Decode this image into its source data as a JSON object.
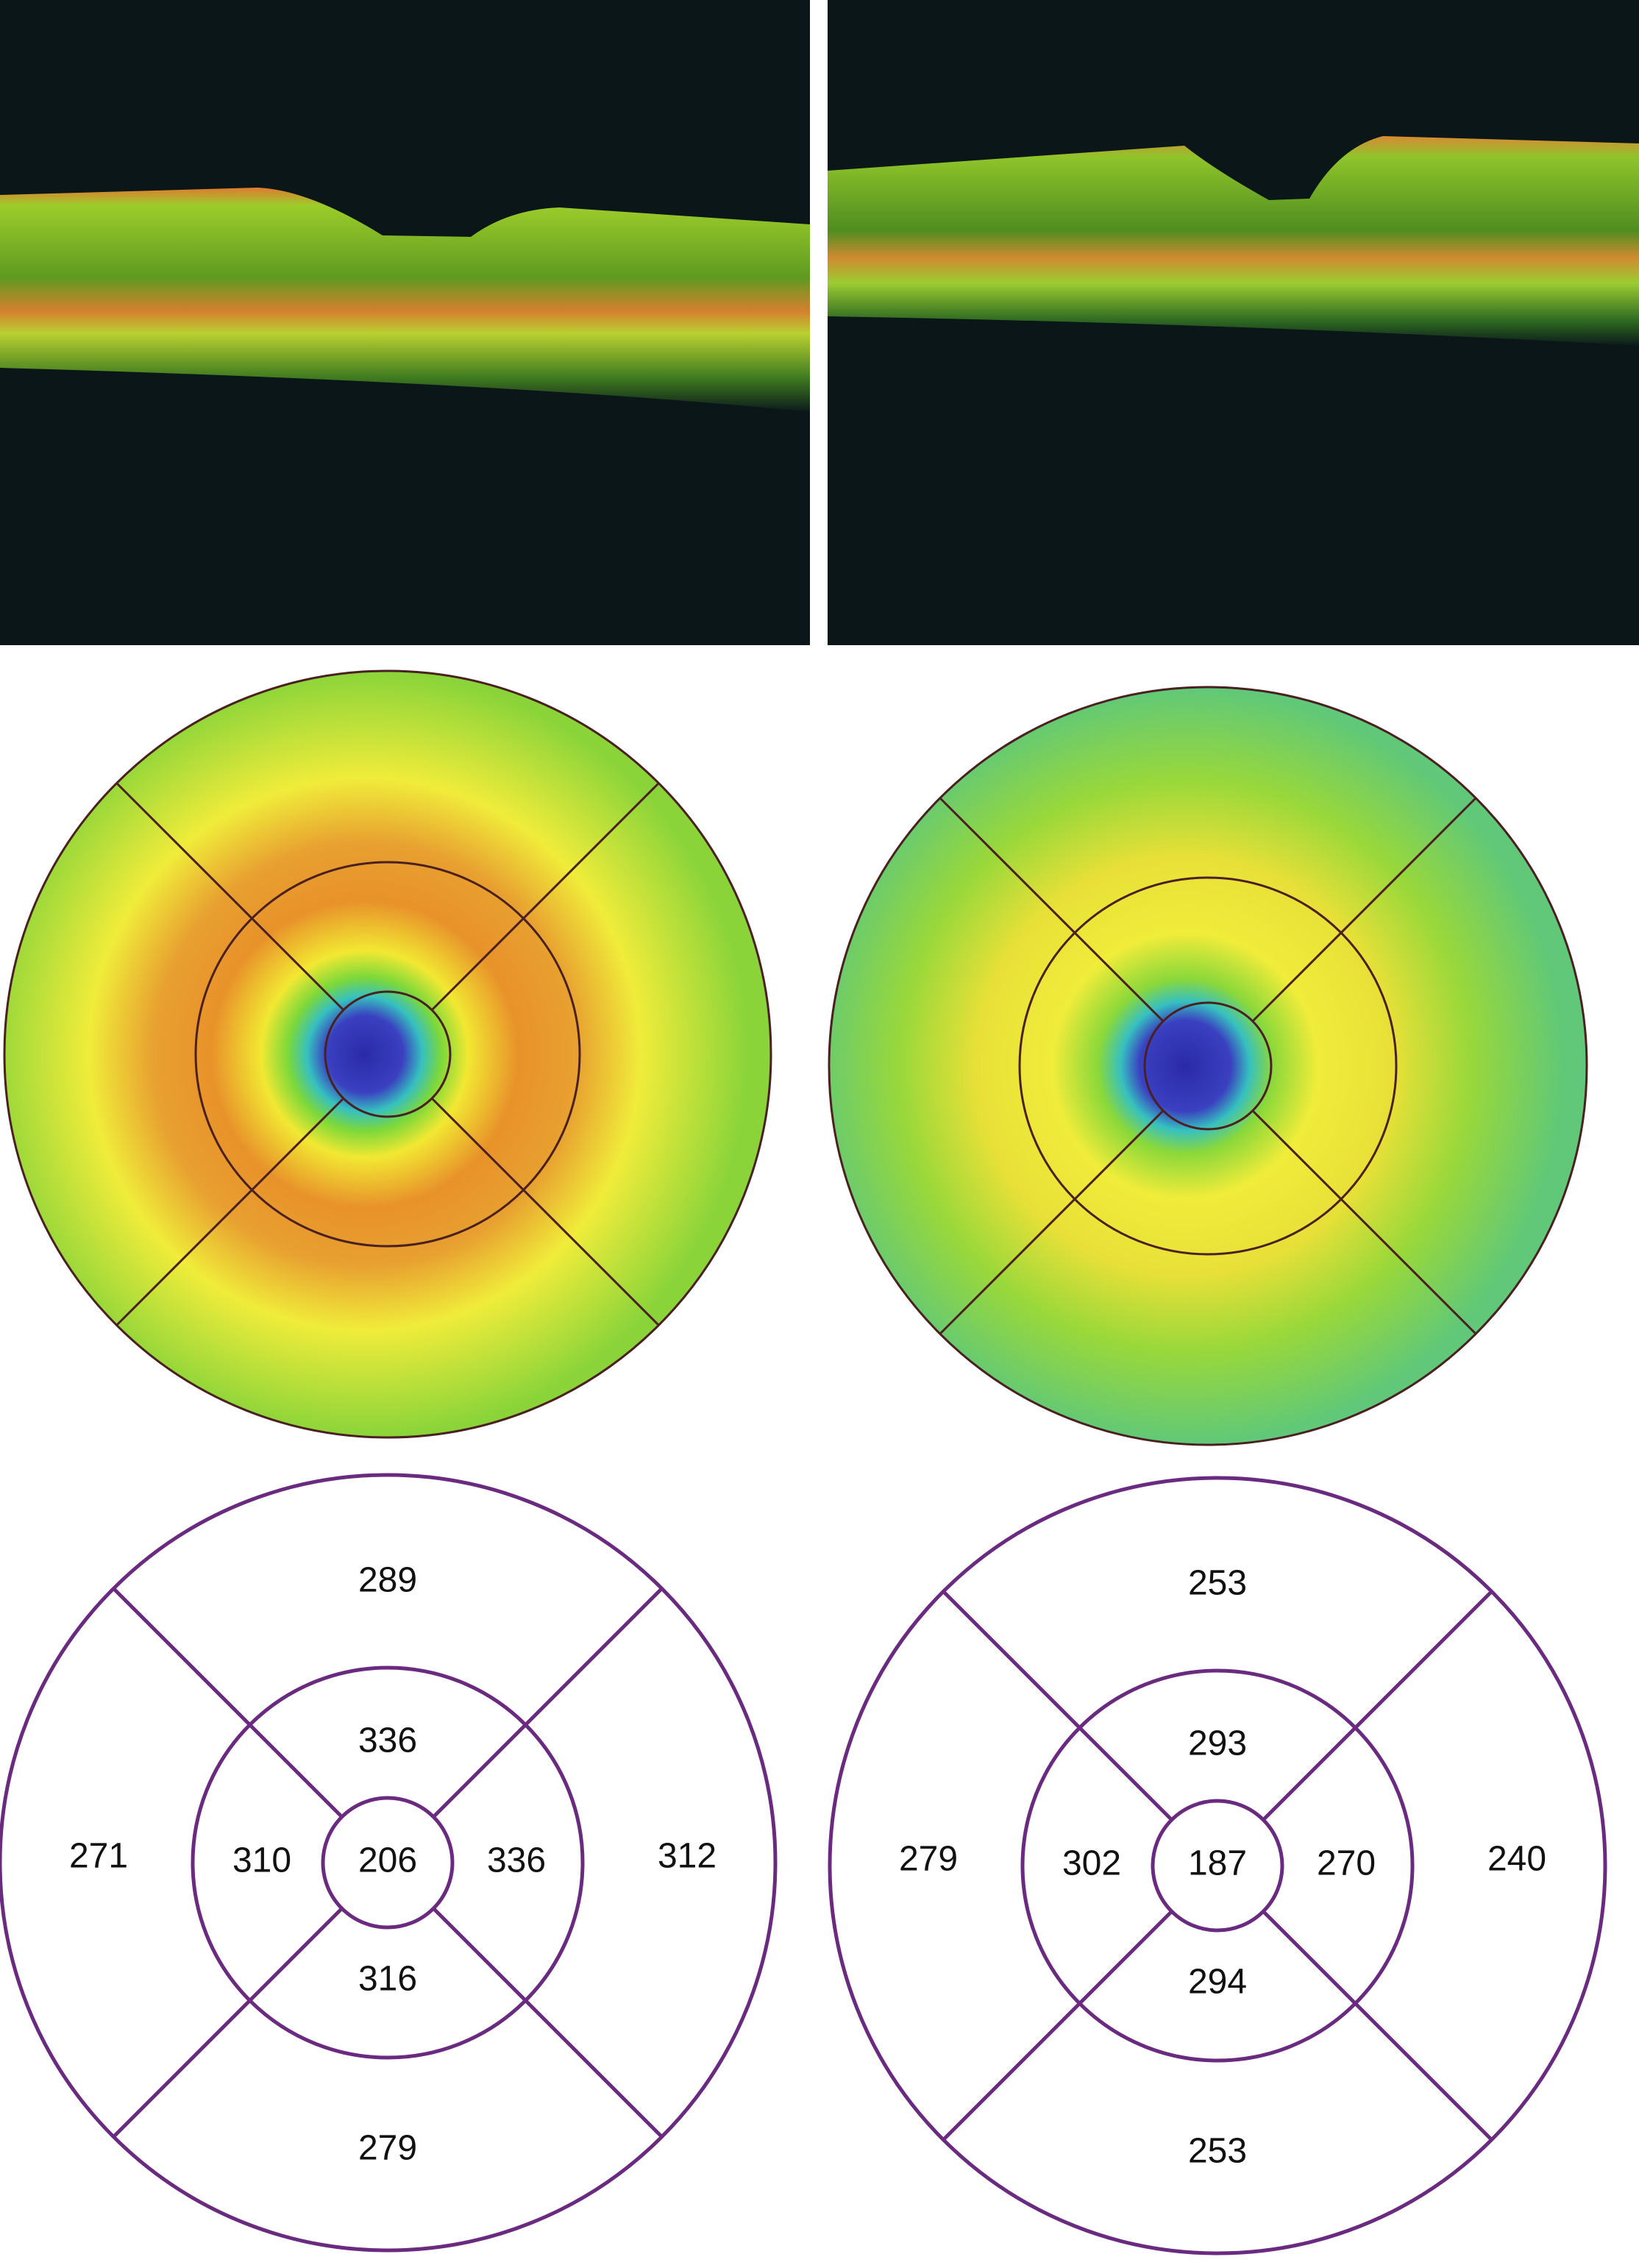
{
  "grids": [
    {
      "center": "206",
      "inner_top": "336",
      "inner_left": "310",
      "inner_right": "336",
      "inner_bottom": "316",
      "outer_top": "289",
      "outer_left": "271",
      "outer_right": "312",
      "outer_bottom": "279"
    },
    {
      "center": "187",
      "inner_top": "293",
      "inner_left": "302",
      "inner_right": "270",
      "inner_bottom": "294",
      "outer_top": "253",
      "outer_left": "279",
      "outer_right": "240",
      "outer_bottom": "253"
    }
  ]
}
